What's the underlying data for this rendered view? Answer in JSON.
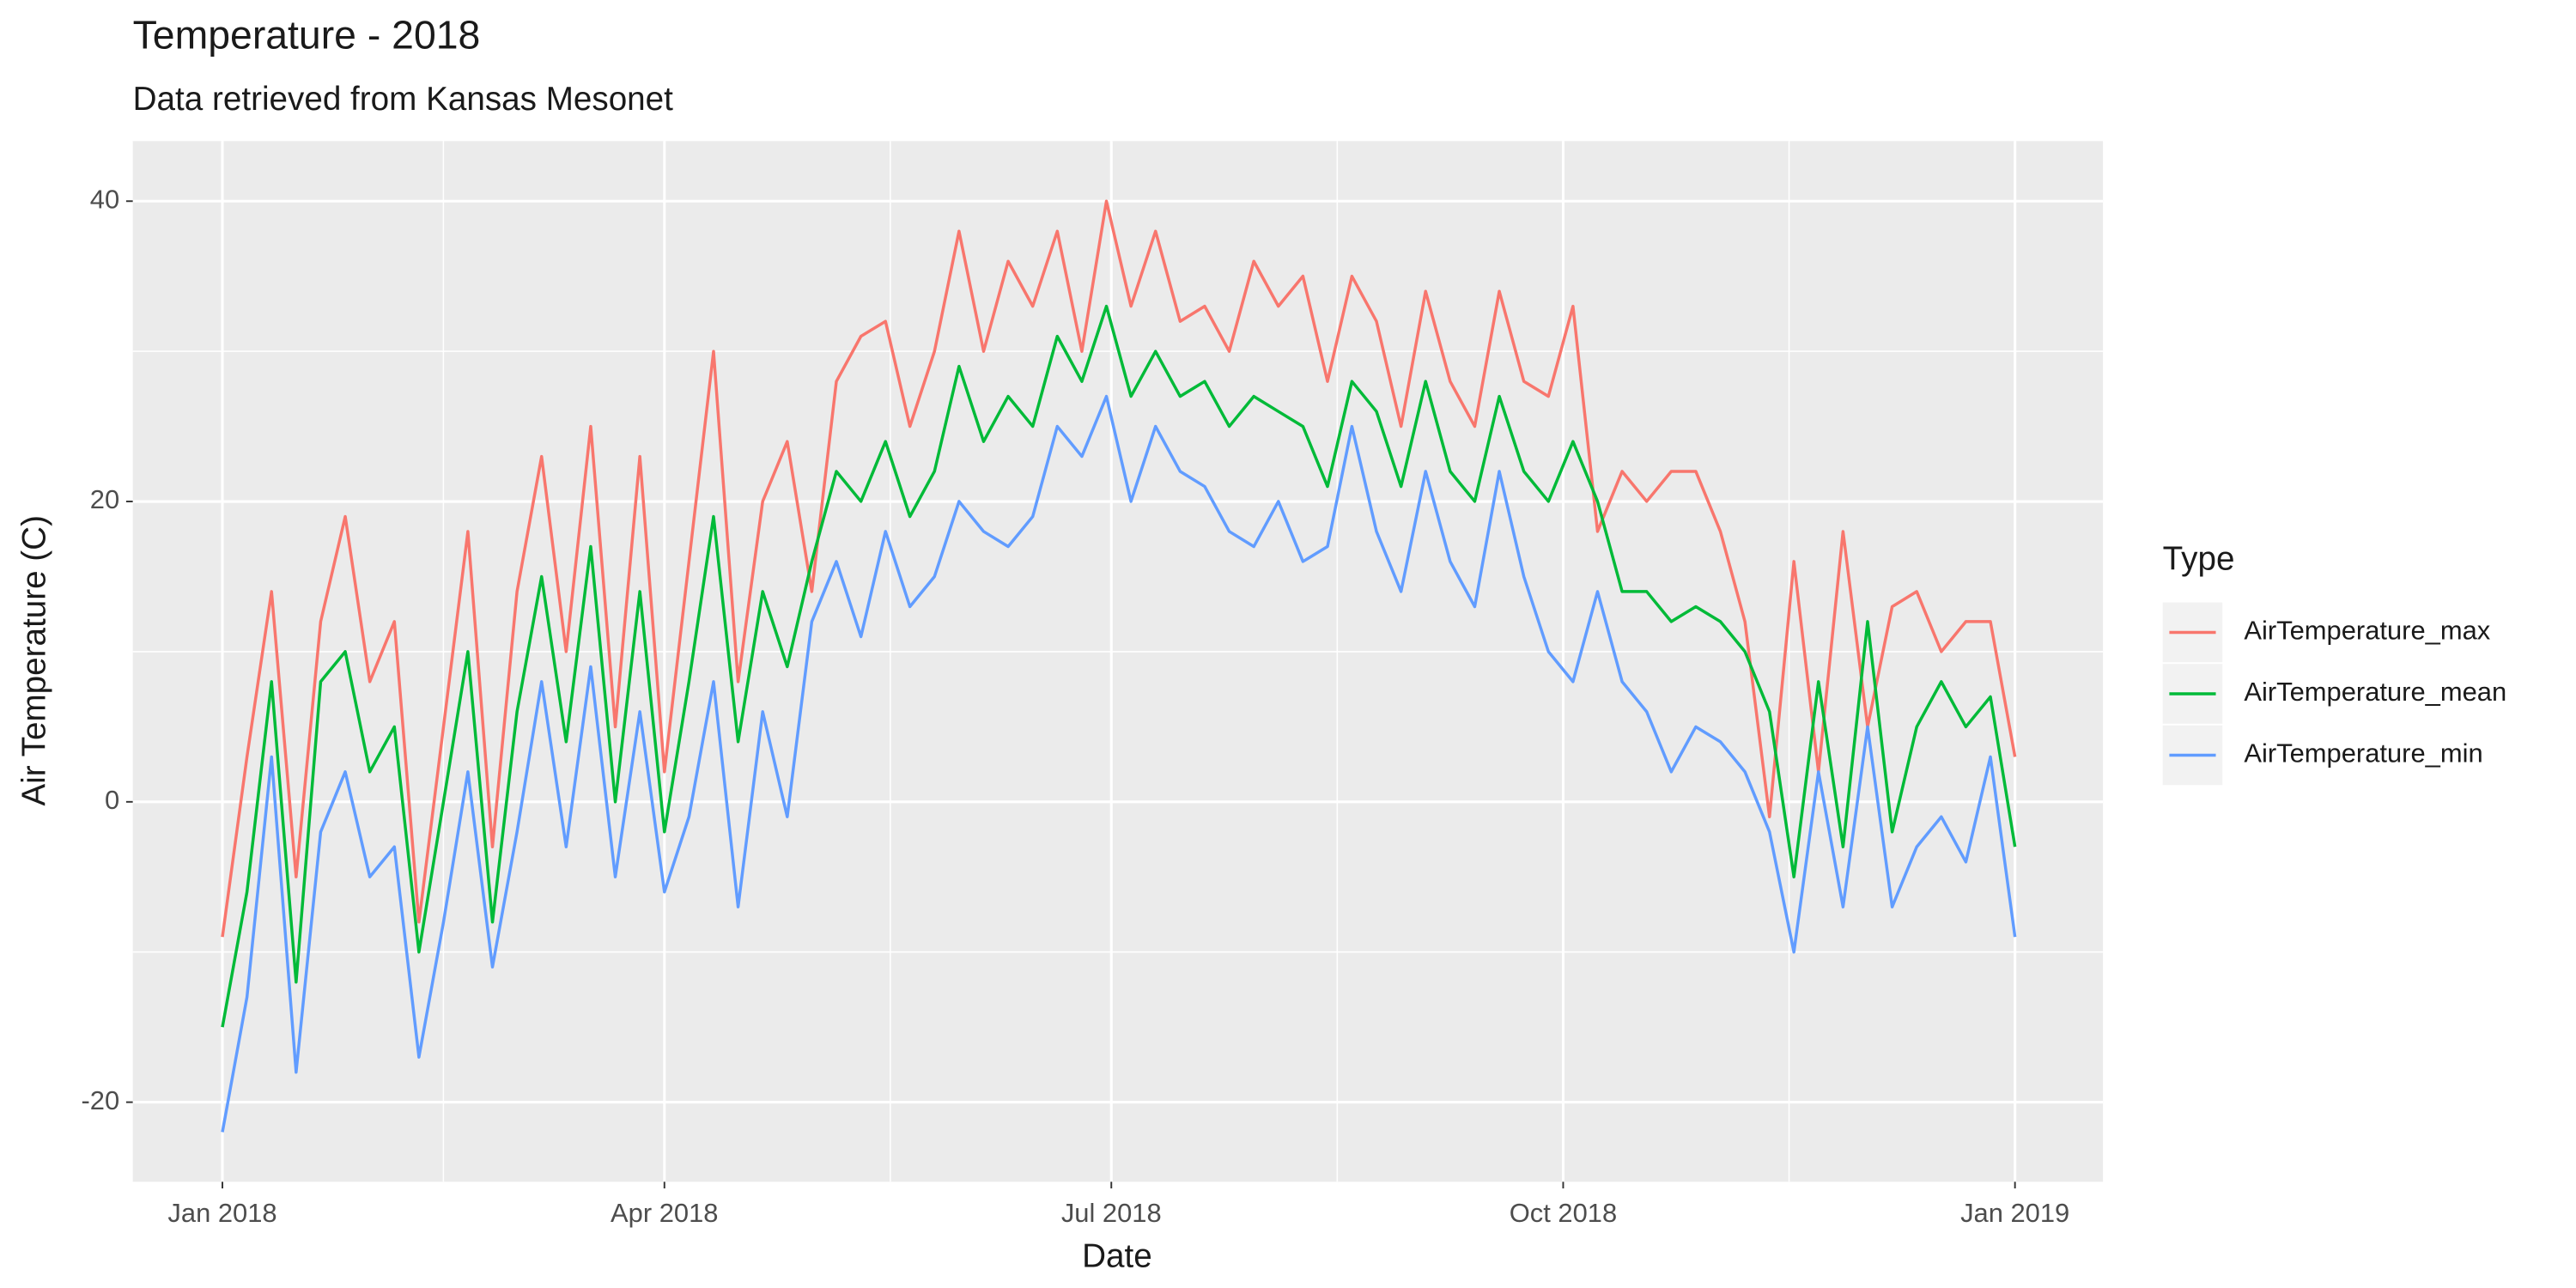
{
  "chart_data": {
    "type": "line",
    "title": "Temperature -  2018",
    "subtitle": "Data retrieved from Kansas Mesonet",
    "xlabel": "Date",
    "ylabel": "Air Temperature (C)",
    "legend_title": "Type",
    "legend": "right",
    "grid": true,
    "x": [
      0,
      5,
      10,
      15,
      20,
      25,
      30,
      35,
      40,
      45,
      50,
      55,
      60,
      65,
      70,
      75,
      80,
      85,
      90,
      95,
      100,
      105,
      110,
      115,
      120,
      125,
      130,
      135,
      140,
      145,
      150,
      155,
      160,
      165,
      170,
      175,
      180,
      185,
      190,
      195,
      200,
      205,
      210,
      215,
      220,
      225,
      230,
      235,
      240,
      245,
      250,
      255,
      260,
      265,
      270,
      275,
      280,
      285,
      290,
      295,
      300,
      305,
      310,
      315,
      320,
      325,
      330,
      335,
      340,
      345,
      350,
      355,
      360,
      365
    ],
    "xlim": [
      0,
      365
    ],
    "xticks": [
      {
        "value": 0,
        "label": "Jan 2018"
      },
      {
        "value": 90,
        "label": "Apr 2018"
      },
      {
        "value": 181,
        "label": "Jul 2018"
      },
      {
        "value": 273,
        "label": "Oct 2018"
      },
      {
        "value": 365,
        "label": "Jan 2019"
      }
    ],
    "xminorticks": [
      45,
      136,
      227,
      319
    ],
    "ylim": [
      -25.3,
      44
    ],
    "yticks": [
      -20,
      0,
      20,
      40
    ],
    "yminorticks": [
      -10,
      10,
      30
    ],
    "series": [
      {
        "name": "AirTemperature_max",
        "color": "#F8766D",
        "values": [
          -9,
          3,
          14,
          -5,
          12,
          19,
          8,
          12,
          -8,
          5,
          18,
          -3,
          14,
          23,
          10,
          25,
          5,
          23,
          2,
          16,
          30,
          8,
          20,
          24,
          14,
          28,
          31,
          32,
          25,
          30,
          38,
          30,
          36,
          33,
          38,
          30,
          40,
          33,
          38,
          32,
          33,
          30,
          36,
          33,
          35,
          28,
          35,
          32,
          25,
          34,
          28,
          25,
          34,
          28,
          27,
          33,
          18,
          22,
          20,
          22,
          22,
          18,
          12,
          -1,
          16,
          2,
          18,
          5,
          13,
          14,
          10,
          12,
          12,
          3
        ]
      },
      {
        "name": "AirTemperature_mean",
        "color": "#00BA38",
        "values": [
          -15,
          -6,
          8,
          -12,
          8,
          10,
          2,
          5,
          -10,
          0,
          10,
          -8,
          6,
          15,
          4,
          17,
          0,
          14,
          -2,
          8,
          19,
          4,
          14,
          9,
          16,
          22,
          20,
          24,
          19,
          22,
          29,
          24,
          27,
          25,
          31,
          28,
          33,
          27,
          30,
          27,
          28,
          25,
          27,
          26,
          25,
          21,
          28,
          26,
          21,
          28,
          22,
          20,
          27,
          22,
          20,
          24,
          20,
          14,
          14,
          12,
          13,
          12,
          10,
          6,
          -5,
          8,
          -3,
          12,
          -2,
          5,
          8,
          5,
          7,
          -3
        ]
      },
      {
        "name": "AirTemperature_min",
        "color": "#619CFF",
        "values": [
          -22,
          -13,
          3,
          -18,
          -2,
          2,
          -5,
          -3,
          -17,
          -8,
          2,
          -11,
          -2,
          8,
          -3,
          9,
          -5,
          6,
          -6,
          -1,
          8,
          -7,
          6,
          -1,
          12,
          16,
          11,
          18,
          13,
          15,
          20,
          18,
          17,
          19,
          25,
          23,
          27,
          20,
          25,
          22,
          21,
          18,
          17,
          20,
          16,
          17,
          25,
          18,
          14,
          22,
          16,
          13,
          22,
          15,
          10,
          8,
          14,
          8,
          6,
          2,
          5,
          4,
          2,
          -2,
          -10,
          2,
          -7,
          5,
          -7,
          -3,
          -1,
          -4,
          3,
          -9
        ]
      }
    ]
  }
}
